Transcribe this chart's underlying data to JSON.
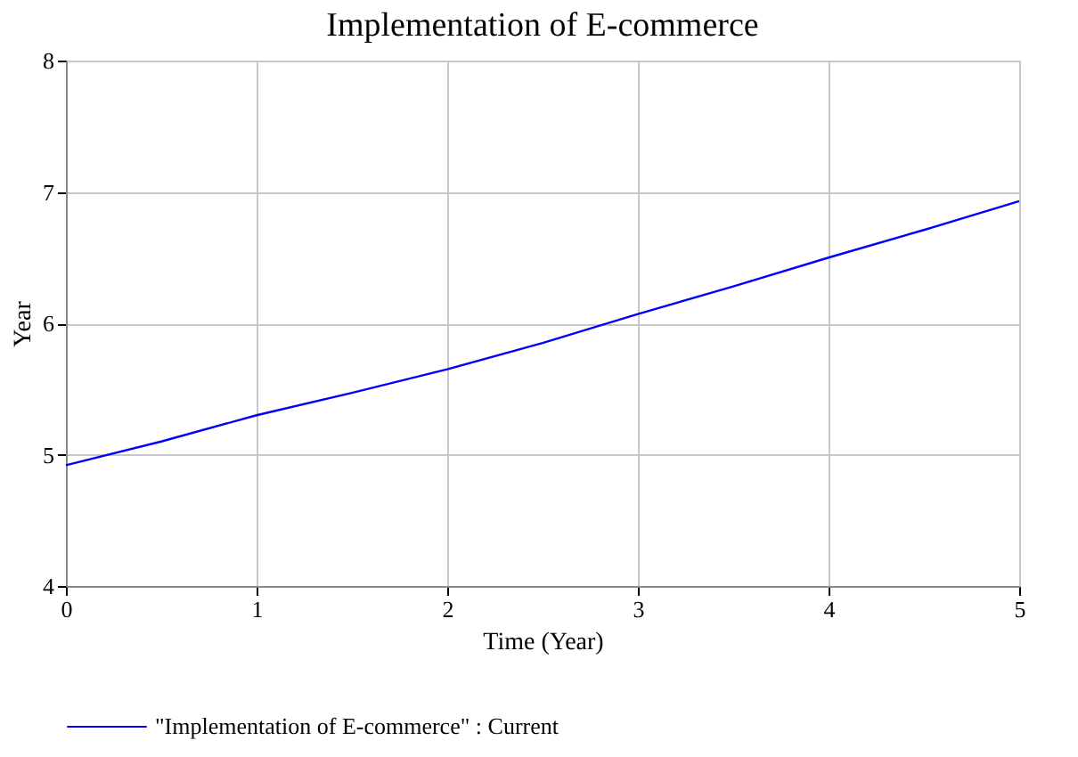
{
  "chart_data": {
    "type": "line",
    "title": "Implementation of E-commerce",
    "xlabel": "Time (Year)",
    "ylabel": "Year",
    "x": [
      0,
      0.5,
      1,
      1.5,
      2,
      2.5,
      3,
      3.5,
      4,
      4.5,
      5
    ],
    "series": [
      {
        "name": "\"Implementation of E-commerce\" : Current",
        "color": "#0000ff",
        "values": [
          4.92,
          5.1,
          5.3,
          5.47,
          5.65,
          5.85,
          6.07,
          6.28,
          6.5,
          6.71,
          6.93
        ]
      }
    ],
    "xlim": [
      0,
      5
    ],
    "xticks": [
      0,
      1,
      2,
      3,
      4,
      5
    ],
    "ylim": [
      4,
      8
    ],
    "yticks": [
      4,
      5,
      6,
      7,
      8
    ],
    "grid": true,
    "legend": "bottom",
    "marker": "none",
    "line_style": "solid"
  }
}
